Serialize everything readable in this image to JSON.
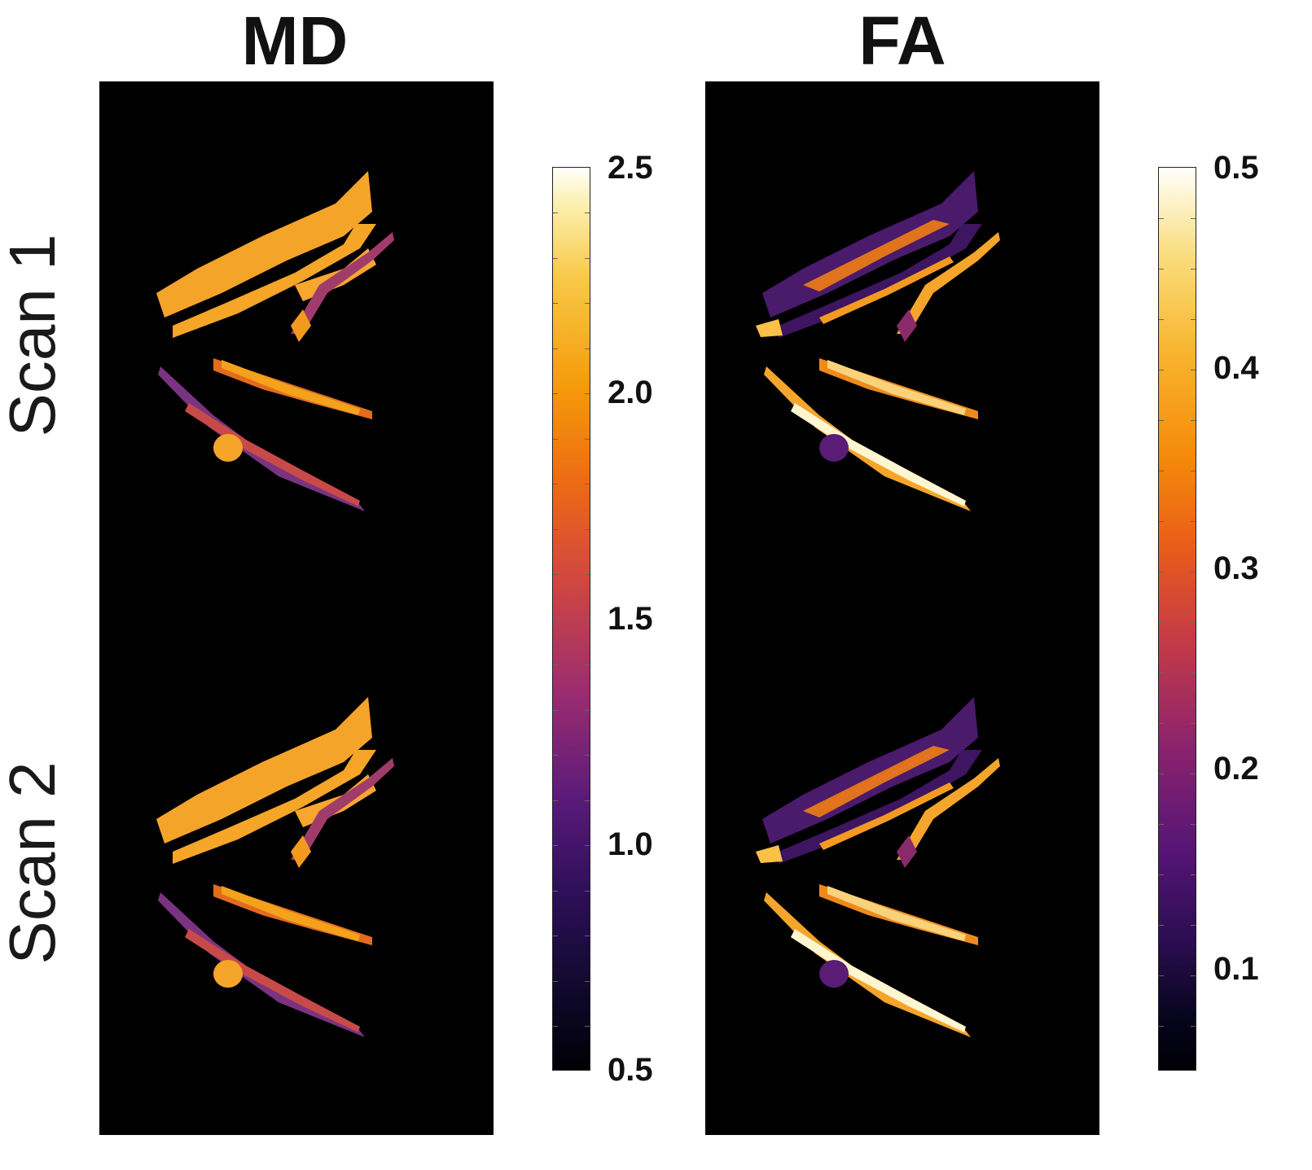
{
  "titles": {
    "md": "MD",
    "fa": "FA"
  },
  "rows": {
    "scan1": "Scan 1",
    "scan2": "Scan 2"
  },
  "colorbars": {
    "md": {
      "ticks": [
        "2.5",
        "2.0",
        "1.5",
        "1.0",
        "0.5"
      ]
    },
    "fa": {
      "ticks": [
        "0.5",
        "0.4",
        "0.3",
        "0.2",
        "0.1"
      ]
    }
  },
  "colors": {
    "background": "#000000",
    "md_fill": "#f5a623",
    "md_low": "#6b2a7e",
    "fa_low": "#4a1a6b",
    "fa_high": "#f9b632"
  }
}
